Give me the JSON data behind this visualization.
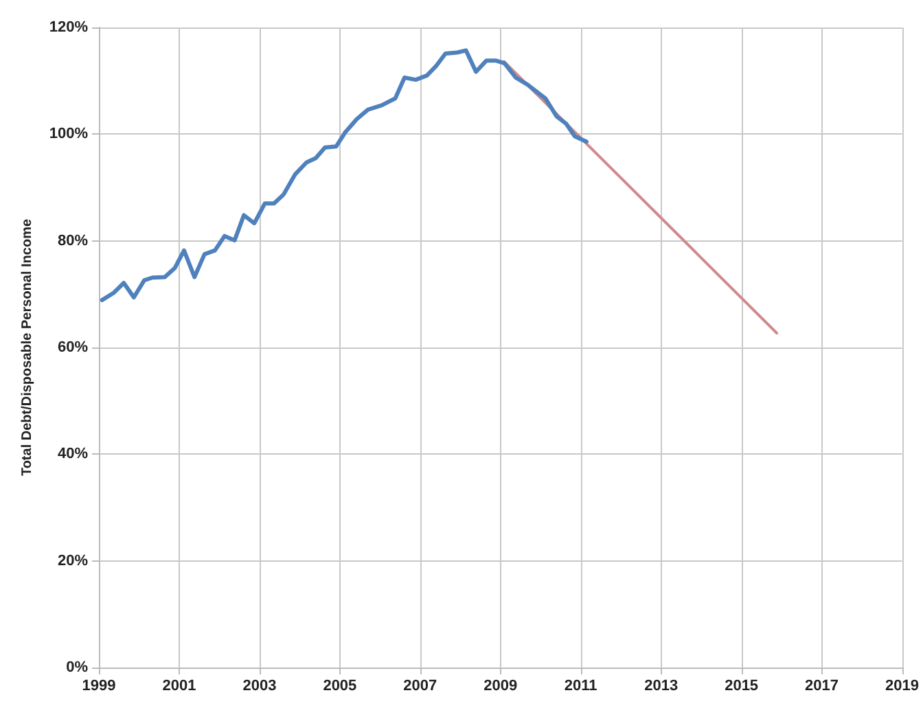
{
  "chart_data": {
    "type": "line",
    "ylabel": "Total Debt/Disposable Personal Income",
    "grid": true,
    "marker": "none",
    "line_style": "solid",
    "xlim": [
      1999,
      2019
    ],
    "xticks": [
      1999,
      2001,
      2003,
      2005,
      2007,
      2009,
      2011,
      2013,
      2015,
      2017,
      2019
    ],
    "ylim": [
      0,
      120
    ],
    "yticks": [
      {
        "value": 0,
        "label": "0%"
      },
      {
        "value": 20,
        "label": "20%"
      },
      {
        "value": 40,
        "label": "40%"
      },
      {
        "value": 60,
        "label": "60%"
      },
      {
        "value": 80,
        "label": "80%"
      },
      {
        "value": 100,
        "label": "100%"
      },
      {
        "value": 120,
        "label": "120%"
      }
    ],
    "series": [
      {
        "color": "#4f81bd",
        "x": [
          1999.08,
          1999.36,
          1999.62,
          1999.87,
          2000.13,
          2000.33,
          2000.64,
          2000.89,
          2001.12,
          2001.38,
          2001.63,
          2001.89,
          2002.13,
          2002.38,
          2002.61,
          2002.87,
          2003.13,
          2003.36,
          2003.6,
          2003.89,
          2004.17,
          2004.4,
          2004.63,
          2004.91,
          2005.14,
          2005.42,
          2005.7,
          2006.04,
          2006.38,
          2006.61,
          2006.89,
          2007.17,
          2007.4,
          2007.63,
          2007.92,
          2008.14,
          2008.39,
          2008.65,
          2008.88,
          2009.1,
          2009.38,
          2009.67,
          2010.12,
          2010.4,
          2010.63,
          2010.85,
          2011.14
        ],
        "values": [
          68.9,
          70.2,
          72.1,
          69.4,
          72.6,
          73.1,
          73.2,
          74.9,
          78.2,
          73.2,
          77.5,
          78.2,
          80.9,
          80.1,
          84.8,
          83.3,
          87,
          87,
          88.7,
          92.5,
          94.7,
          95.5,
          97.5,
          97.7,
          100.4,
          102.8,
          104.6,
          105.4,
          106.7,
          110.6,
          110.2,
          111,
          112.8,
          115.1,
          115.3,
          115.7,
          111.7,
          113.8,
          113.8,
          113.3,
          110.6,
          109.3,
          106.7,
          103.3,
          102,
          99.6,
          98.6
        ]
      },
      {
        "color": "#d08a8a",
        "x": [
          2009.09,
          2015.88
        ],
        "values": [
          113.6,
          62.7
        ]
      }
    ]
  }
}
